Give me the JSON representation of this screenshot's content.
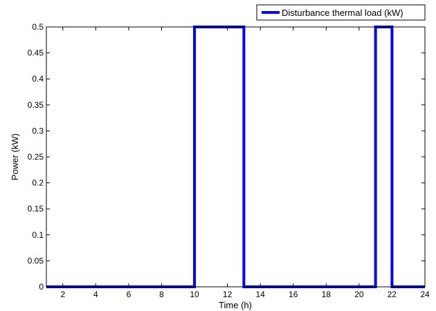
{
  "chart_data": {
    "type": "line",
    "title": "",
    "xlabel": "Time (h)",
    "ylabel": "Power (kW)",
    "xlim": [
      1,
      24
    ],
    "ylim": [
      0,
      0.5
    ],
    "xticks": [
      2,
      4,
      6,
      8,
      10,
      12,
      14,
      16,
      18,
      20,
      22,
      24
    ],
    "xtick_labels": [
      "2",
      "4",
      "6",
      "8",
      "10",
      "12",
      "14",
      "16",
      "18",
      "20",
      "22",
      "24"
    ],
    "yticks": [
      0,
      0.05,
      0.1,
      0.15,
      0.2,
      0.25,
      0.3,
      0.35,
      0.4,
      0.45,
      0.5
    ],
    "ytick_labels": [
      "0",
      "0.05",
      "0.1",
      "0.15",
      "0.2",
      "0.25",
      "0.3",
      "0.35",
      "0.4",
      "0.45",
      "0.5"
    ],
    "grid": false,
    "legend_position": "top-right",
    "series": [
      {
        "name": "Disturbance thermal load (kW)",
        "color": "#0000ff",
        "step": true,
        "x": [
          1,
          10,
          10,
          13,
          13,
          21,
          21,
          22,
          22,
          24
        ],
        "y": [
          0,
          0,
          0.5,
          0.5,
          0,
          0,
          0.5,
          0.5,
          0,
          0
        ]
      }
    ]
  }
}
